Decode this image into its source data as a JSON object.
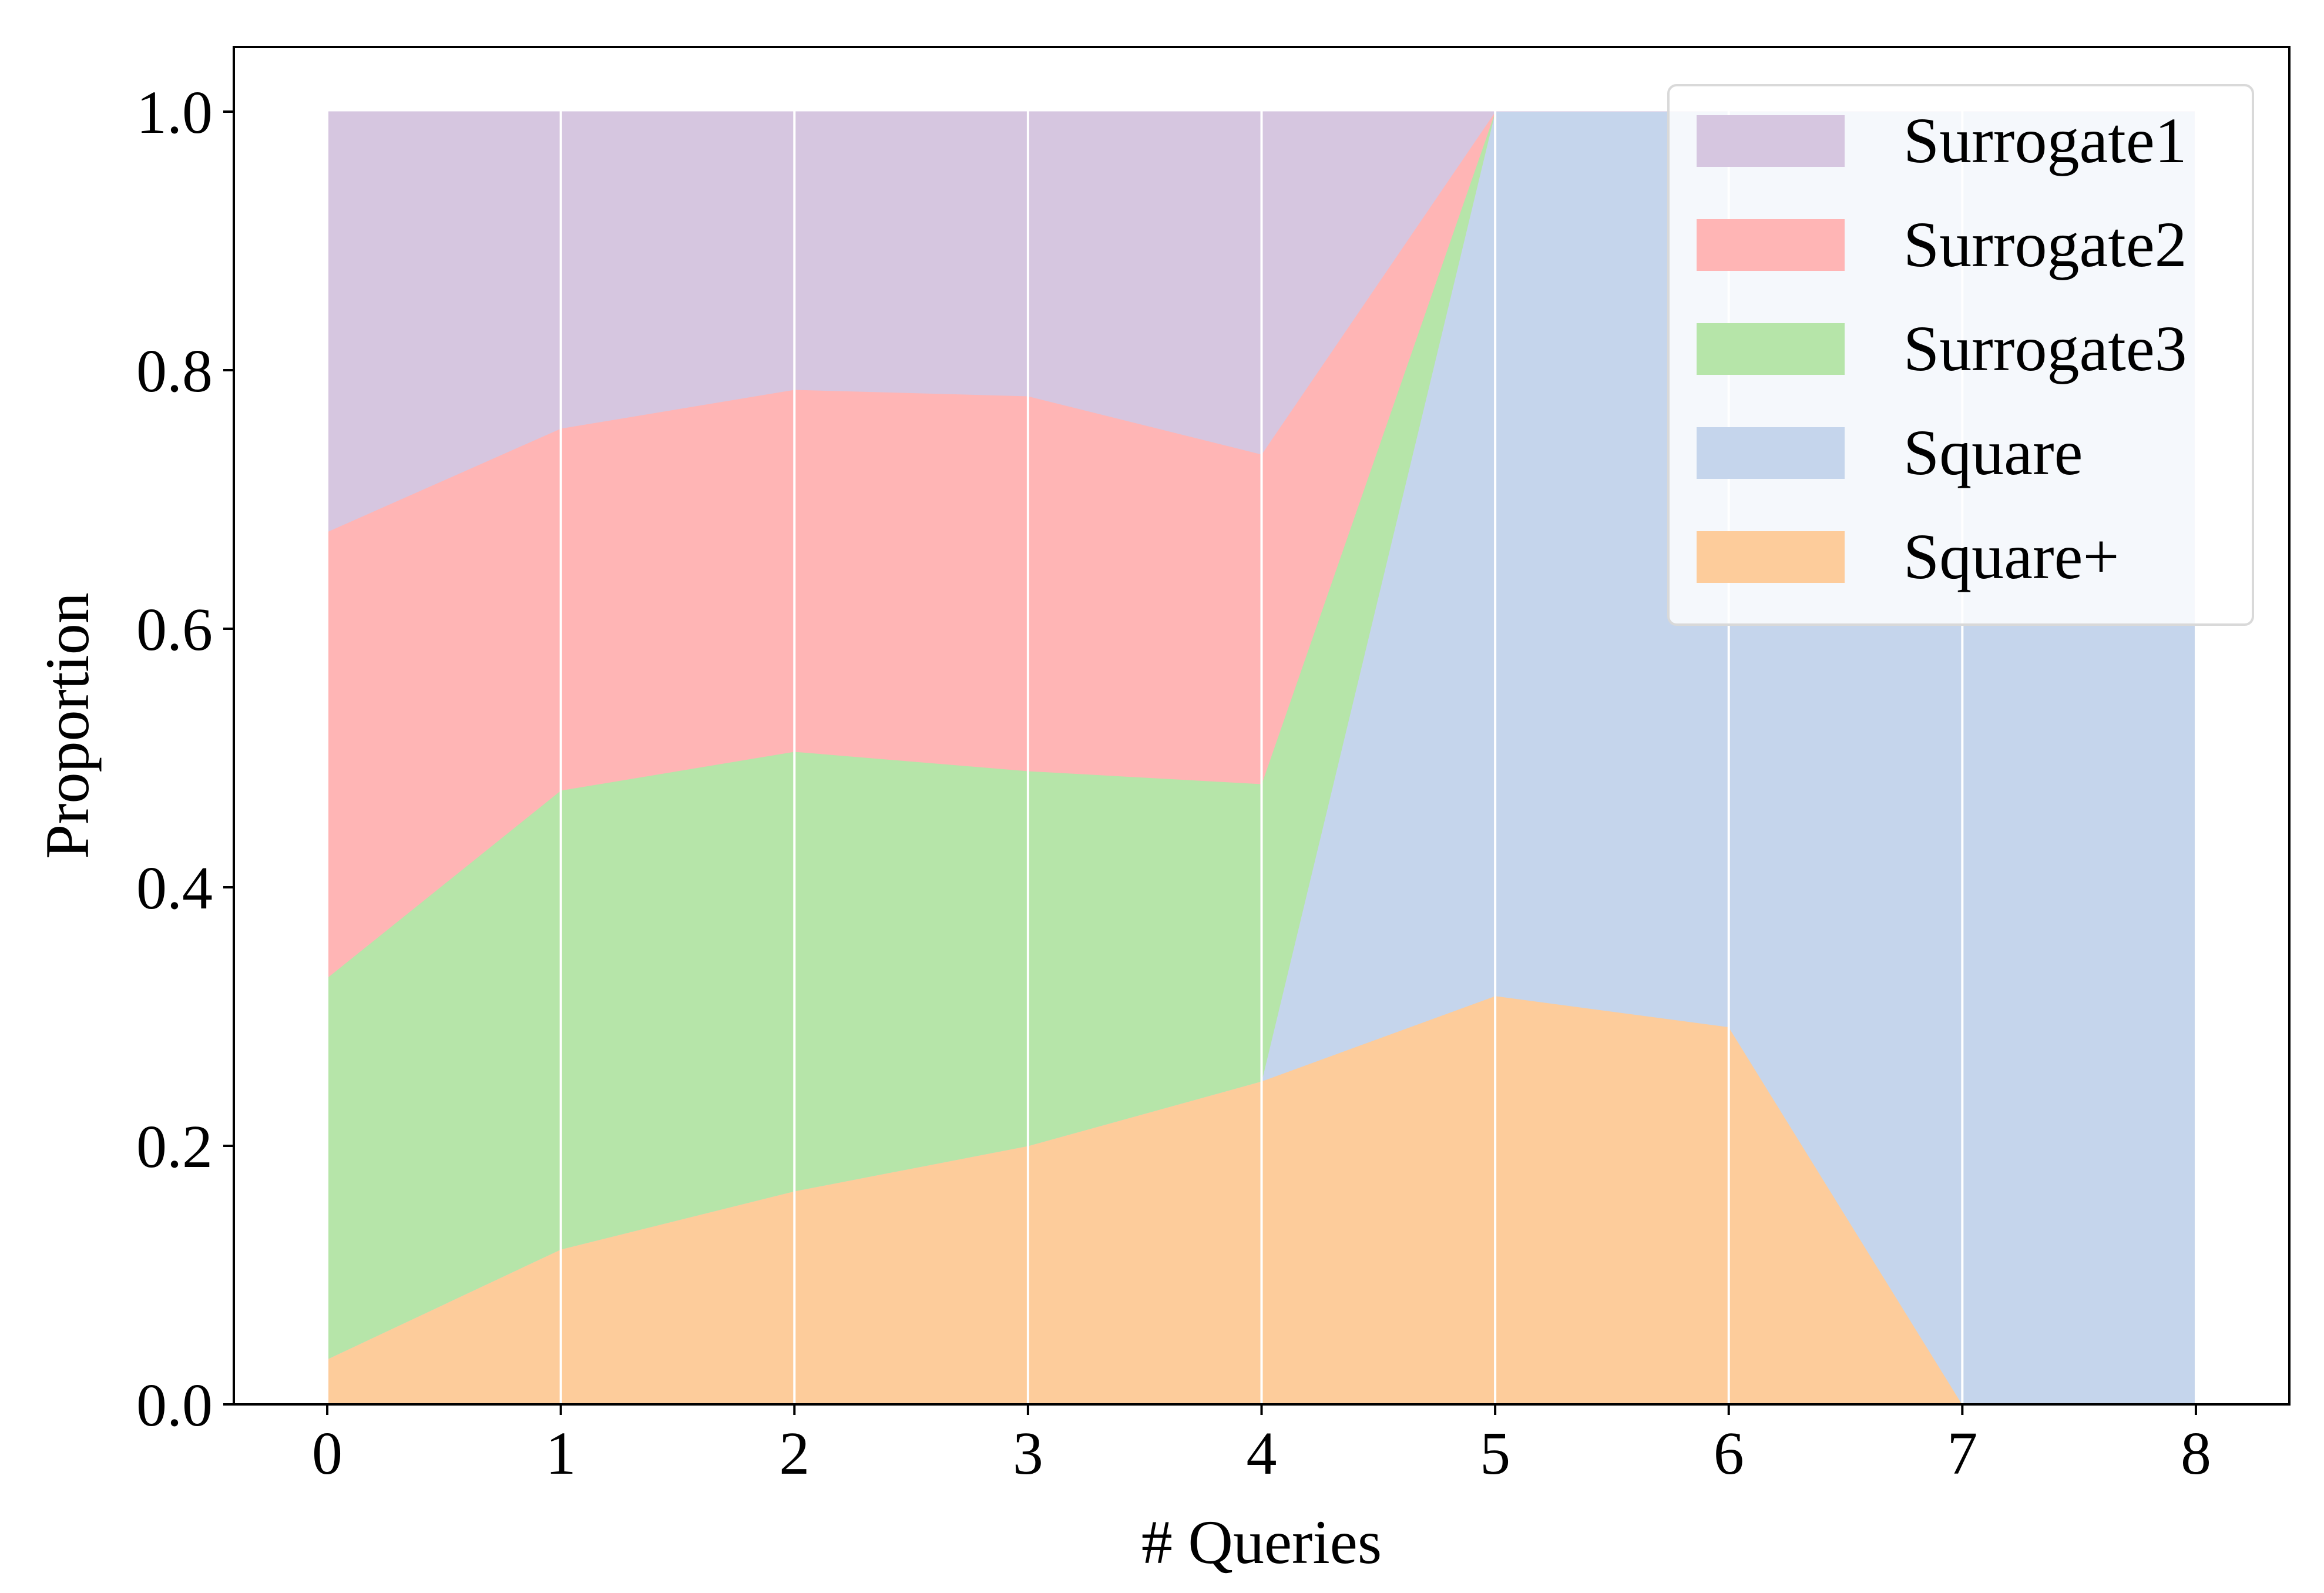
{
  "chart_data": {
    "type": "area",
    "stacked": true,
    "title": "",
    "xlabel": "# Queries",
    "ylabel": "Proportion",
    "x": [
      0,
      1,
      2,
      3,
      4,
      5,
      6,
      7,
      8
    ],
    "x_ticks": [
      "0",
      "1",
      "2",
      "3",
      "4",
      "5",
      "6",
      "7",
      "8"
    ],
    "y_ticks": [
      "0.0",
      "0.2",
      "0.4",
      "0.6",
      "0.8",
      "1.0"
    ],
    "xlim": [
      -0.4,
      8.4
    ],
    "ylim": [
      0,
      1.05
    ],
    "grid": "vertical",
    "legend_position": "top-right",
    "series": [
      {
        "name": "Square+",
        "color": "#fdcc9b",
        "values": [
          0.035,
          0.12,
          0.165,
          0.2,
          0.25,
          0.316,
          0.292,
          0.0,
          0.0
        ]
      },
      {
        "name": "Square",
        "color": "#c5d5ec",
        "values": [
          0.0,
          0.0,
          0.0,
          0.0,
          0.0,
          0.684,
          0.708,
          1.0,
          1.0
        ]
      },
      {
        "name": "Surrogate3",
        "color": "#b6e5a9",
        "values": [
          0.295,
          0.355,
          0.34,
          0.29,
          0.23,
          0.0,
          0.0,
          0.0,
          0.0
        ]
      },
      {
        "name": "Surrogate2",
        "color": "#ffb5b5",
        "values": [
          0.345,
          0.28,
          0.28,
          0.29,
          0.255,
          0.0,
          0.0,
          0.0,
          0.0
        ]
      },
      {
        "name": "Surrogate1",
        "color": "#d6c6e0",
        "values": [
          0.325,
          0.245,
          0.215,
          0.22,
          0.265,
          0.0,
          0.0,
          0.0,
          0.0
        ]
      }
    ],
    "legend_order": [
      "Surrogate1",
      "Surrogate2",
      "Surrogate3",
      "Square",
      "Square+"
    ]
  }
}
